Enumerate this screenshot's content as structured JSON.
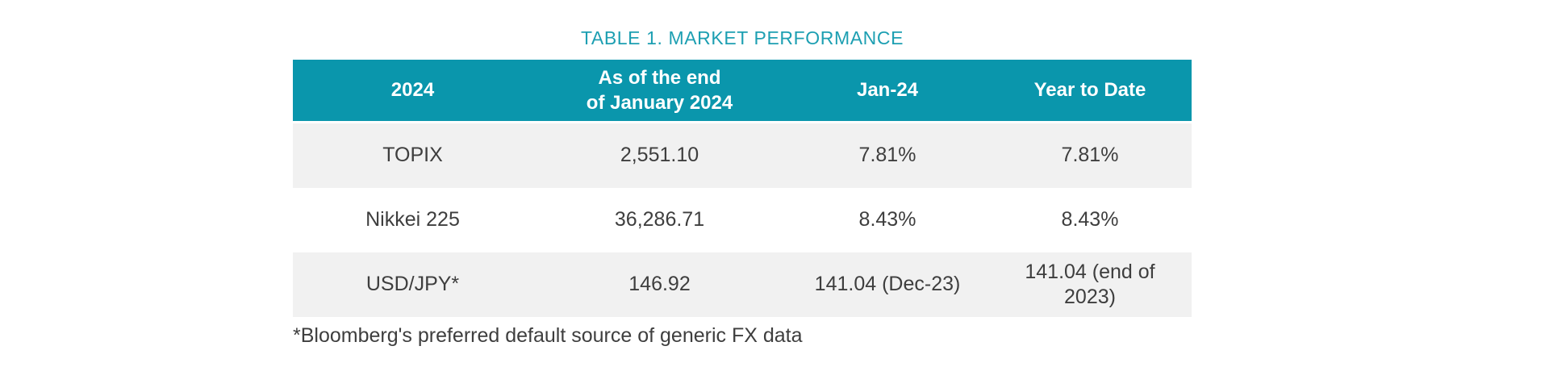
{
  "title": "TABLE 1. MARKET PERFORMANCE",
  "colors": {
    "header_bg": "#0a96ac",
    "header_text": "#ffffff",
    "title_text": "#1d9fb2",
    "row_alt_bg": "#f1f1f1",
    "body_text": "#3e3e3e",
    "page_bg": "#ffffff"
  },
  "table": {
    "columns": [
      "2024",
      "As of the end\nof January 2024",
      "Jan-24",
      "Year to Date"
    ],
    "rows": [
      {
        "label": "TOPIX",
        "values": [
          "2,551.10",
          "7.81%",
          "7.81%"
        ]
      },
      {
        "label": "Nikkei 225",
        "values": [
          "36,286.71",
          "8.43%",
          "8.43%"
        ]
      },
      {
        "label": "USD/JPY*",
        "values": [
          "146.92",
          "141.04 (Dec-23)",
          "141.04 (end of 2023)"
        ]
      }
    ]
  },
  "footnote": "*Bloomberg's preferred default source of generic FX data"
}
